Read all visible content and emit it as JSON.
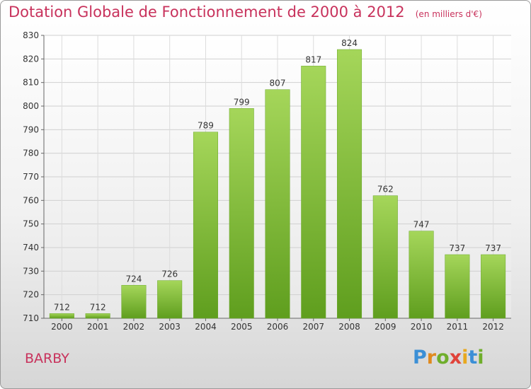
{
  "title": "Dotation Globale de Fonctionnement de 2000 à 2012",
  "subtitle": "(en milliers d'€)",
  "commune": "BARBY",
  "logo": {
    "parts": [
      "P",
      "r",
      "o",
      "x",
      "i",
      "t",
      "i"
    ],
    "colors": [
      "#3b8fd6",
      "#e08a1e",
      "#6fae2c",
      "#e0433a",
      "#e8a81e",
      "#3b8fd6",
      "#6fae2c"
    ]
  },
  "chart_data": {
    "type": "bar",
    "categories": [
      "2000",
      "2001",
      "2002",
      "2003",
      "2004",
      "2005",
      "2006",
      "2007",
      "2008",
      "2009",
      "2010",
      "2011",
      "2012"
    ],
    "values": [
      712,
      712,
      724,
      726,
      789,
      799,
      807,
      817,
      824,
      762,
      747,
      737,
      737
    ],
    "ylim": [
      710,
      830
    ],
    "yticks": [
      710,
      720,
      730,
      740,
      750,
      760,
      770,
      780,
      790,
      800,
      810,
      820,
      830
    ],
    "grid": true,
    "bar_color": "#7dbb3a"
  }
}
